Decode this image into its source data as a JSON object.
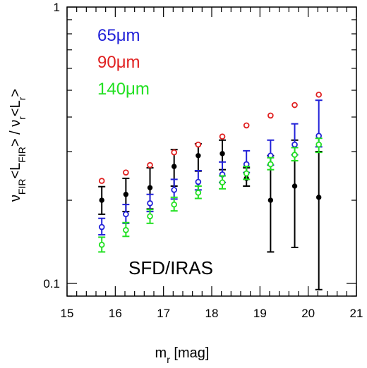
{
  "chart_data": {
    "type": "scatter",
    "title": "",
    "xlabel": {
      "main": "m",
      "sub": "r",
      "rest": " [mag]"
    },
    "ylabel": {
      "nu1": "ν",
      "sub1": "FIR",
      "mid1": "<L",
      "sub2": "FIR",
      "mid2": "> / ν",
      "sub3": "r",
      "mid3": "<L",
      "sub4": "r",
      "end": ">"
    },
    "xlim": [
      15,
      21
    ],
    "ylim": [
      0.09,
      1.0
    ],
    "yscale": "log",
    "x_ticks": [
      "15",
      "16",
      "17",
      "18",
      "19",
      "20",
      "21"
    ],
    "y_tick_labels": [
      {
        "value": 0.1,
        "label": "0.1"
      },
      {
        "value": 1.0,
        "label": "1"
      }
    ],
    "legend_placement": "top-left",
    "legend": [
      {
        "text": "65μm",
        "color": "#2121d8"
      },
      {
        "text": "90μm",
        "color": "#e02020"
      },
      {
        "text": "140μm",
        "color": "#22e022"
      }
    ],
    "annotation": "SFD/IRAS",
    "series": [
      {
        "color": "#000000",
        "marker": "filled",
        "x": [
          15.72,
          16.22,
          16.72,
          17.22,
          17.72,
          18.22,
          18.72,
          19.22,
          19.72,
          20.22
        ],
        "y": [
          0.2,
          0.21,
          0.222,
          0.265,
          0.29,
          0.295,
          0.24,
          0.2,
          0.225,
          0.205
        ],
        "err_lo": [
          0.178,
          0.182,
          0.186,
          0.225,
          0.255,
          0.258,
          0.225,
          0.13,
          0.135,
          0.095
        ],
        "err_hi": [
          0.224,
          0.24,
          0.262,
          0.305,
          0.32,
          0.33,
          0.262,
          0.29,
          0.33,
          0.3
        ]
      },
      {
        "color": "#2121d8",
        "marker": "open",
        "x": [
          15.72,
          16.22,
          16.72,
          17.22,
          17.72,
          18.22,
          18.72,
          19.22,
          19.72,
          20.22
        ],
        "y": [
          0.16,
          0.178,
          0.195,
          0.218,
          0.233,
          0.248,
          0.27,
          0.29,
          0.318,
          0.342
        ],
        "err_lo": [
          0.15,
          0.165,
          0.182,
          0.202,
          0.218,
          0.232,
          0.252,
          0.268,
          0.292,
          0.312
        ],
        "err_hi": [
          0.172,
          0.193,
          0.21,
          0.238,
          0.256,
          0.275,
          0.302,
          0.33,
          0.378,
          0.46
        ]
      },
      {
        "color": "#e02020",
        "marker": "open",
        "x": [
          15.72,
          16.22,
          16.72,
          17.22,
          17.72,
          18.22,
          18.72,
          19.22,
          19.72,
          20.22
        ],
        "y": [
          0.235,
          0.252,
          0.268,
          0.298,
          0.318,
          0.34,
          0.373,
          0.405,
          0.442,
          0.482
        ],
        "err_lo": [
          0.235,
          0.252,
          0.268,
          0.298,
          0.318,
          0.34,
          0.373,
          0.405,
          0.442,
          0.482
        ],
        "err_hi": [
          0.235,
          0.252,
          0.268,
          0.298,
          0.318,
          0.34,
          0.373,
          0.405,
          0.442,
          0.482
        ]
      },
      {
        "color": "#22e022",
        "marker": "open",
        "x": [
          15.72,
          16.22,
          16.72,
          17.22,
          17.72,
          18.22,
          18.72,
          19.22,
          19.72,
          20.22
        ],
        "y": [
          0.138,
          0.156,
          0.175,
          0.193,
          0.213,
          0.232,
          0.25,
          0.27,
          0.292,
          0.318
        ],
        "err_lo": [
          0.13,
          0.148,
          0.165,
          0.183,
          0.203,
          0.22,
          0.238,
          0.258,
          0.278,
          0.298
        ],
        "err_hi": [
          0.147,
          0.166,
          0.185,
          0.205,
          0.225,
          0.245,
          0.265,
          0.285,
          0.31,
          0.335
        ]
      }
    ]
  }
}
